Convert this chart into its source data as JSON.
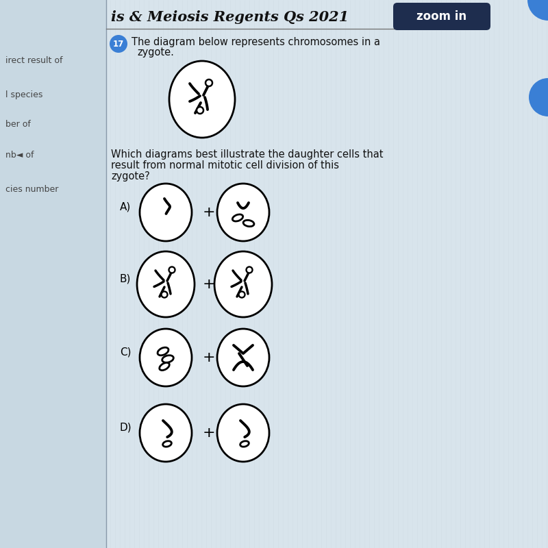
{
  "background_color": "#d8e4ec",
  "stripe_color": "#cdd8e0",
  "title": "is & Meiosis Regents Qs 2021",
  "zoom_in_label": "zoom in",
  "zoom_in_bg": "#1e2d4e",
  "question_number": "17",
  "question_number_bg": "#3a7fd5",
  "question_text_line1": "The diagram below represents chromosomes in a",
  "question_text_line2": "zygote.",
  "body_text_line1": "Which diagrams best illustrate the daughter cells that",
  "body_text_line2": "result from normal mitotic cell division of this",
  "body_text_line3": "zygote?",
  "left_labels": [
    "irect result of",
    "l species",
    "ber of",
    "nb◄ of",
    "cies number"
  ],
  "answer_labels": [
    "A)",
    "B)",
    "C)",
    "D)"
  ],
  "font_size_title": 15,
  "font_size_body": 10.5,
  "font_size_answer": 11,
  "right_blue_circle_color": "#3a7fd5",
  "cell_bg": "#ffffff"
}
